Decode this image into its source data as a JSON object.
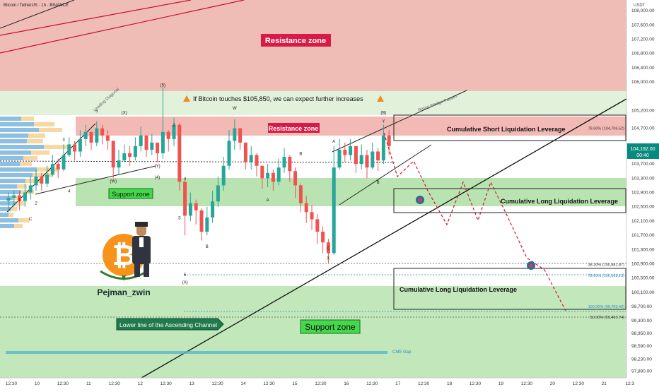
{
  "header": {
    "title": "Bitcoin / TetherUS · 1h · BINANCE",
    "currency": "USDT"
  },
  "price_tag": {
    "value": "104,192.00",
    "countdown": "00:40",
    "color": "#0a8a7e"
  },
  "zones": {
    "resistance_top": "Resistance zone",
    "resistance_mid": "Resistance zone",
    "support_mid": "Support zone",
    "support_bottom": "Support zone",
    "short_liq": "Cumulative Short Liquidation Leverage",
    "long_liq_1": "Cumulative Long Liquidation Leverage",
    "long_liq_2": "Cumulative Long Liquidation Leverage",
    "cme_gap": "CME Gap",
    "note": "If Bitcoin touches $105,850, we can expect further increases",
    "channel_label": "Lower line of the Ascending Channel",
    "wedge_label": "Rising Wedge Pattern",
    "diagonal_label": "Leading Diagonal",
    "author": "Pejman_zwin"
  },
  "fib_levels": [
    {
      "label": "78.60% (104,706.52)",
      "price": 104706.52,
      "color": "#333333"
    },
    {
      "label": "38.20% (100,881.87)",
      "price": 100881.87,
      "color": "#333333"
    },
    {
      "label": "78.60% (100,568.13)",
      "price": 100568.13,
      "color": "#2e8bc0"
    },
    {
      "label": "100.00% (99,703.42)",
      "price": 99703.42,
      "color": "#2e8bc0"
    },
    {
      "label": "50.00% (99,403.74)",
      "price": 99403.74,
      "color": "#333333"
    }
  ],
  "wave_labels": [
    {
      "t": "1",
      "i": 2,
      "p": 102650
    },
    {
      "t": "2",
      "i": 5,
      "p": 102560
    },
    {
      "t": "3",
      "i": 10,
      "p": 104350
    },
    {
      "t": "4",
      "i": 11,
      "p": 102900
    },
    {
      "t": "5",
      "i": 16,
      "p": 105150
    },
    {
      "t": "(W)",
      "i": 19,
      "p": 103180
    },
    {
      "t": "(X)",
      "i": 21,
      "p": 105100
    },
    {
      "t": "(Y)",
      "i": 27,
      "p": 103600
    },
    {
      "t": "(4)",
      "i": 27,
      "p": 103290
    },
    {
      "t": "(5)",
      "i": 28,
      "p": 105870
    },
    {
      "t": "2",
      "i": 30,
      "p": 104750
    },
    {
      "t": "4",
      "i": 32,
      "p": 103250
    },
    {
      "t": "3",
      "i": 31,
      "p": 102150
    },
    {
      "t": "B",
      "i": 36,
      "p": 101350
    },
    {
      "t": "5",
      "i": 32,
      "p": 100550
    },
    {
      "t": "(A)",
      "i": 32,
      "p": 100350
    },
    {
      "t": "W",
      "i": 41,
      "p": 105230
    },
    {
      "t": "A",
      "i": 47,
      "p": 102650
    },
    {
      "t": "B",
      "i": 53,
      "p": 103950
    },
    {
      "t": "C",
      "i": 58,
      "p": 101300
    },
    {
      "t": "X",
      "i": 58,
      "p": 101020
    },
    {
      "t": "A",
      "i": 59,
      "p": 104300
    },
    {
      "t": "B",
      "i": 67,
      "p": 103150
    },
    {
      "t": "Y",
      "i": 68,
      "p": 104860
    },
    {
      "t": "(B)",
      "i": 68,
      "p": 105100
    },
    {
      "t": "C",
      "i": 4,
      "p": 102120
    }
  ],
  "axis": {
    "price_ticks": [
      "108,000.00",
      "107,600.00",
      "107,200.00",
      "106,800.00",
      "106,400.00",
      "106,000.00",
      "105,200.00",
      "104,700.00",
      "103,700.00",
      "103,300.00",
      "102,900.00",
      "102,500.00",
      "102,100.00",
      "101,700.00",
      "101,300.00",
      "100,900.00",
      "100,500.00",
      "100,100.00",
      "99,700.00",
      "99,300.00",
      "98,950.00",
      "98,590.00",
      "98,230.00",
      "97,890.00"
    ],
    "time_ticks": [
      "12:30",
      "10",
      "12:30",
      "11",
      "12:30",
      "12",
      "12:30",
      "13",
      "12:30",
      "14",
      "12:30",
      "15",
      "12:30",
      "16",
      "12:30",
      "17",
      "12:30",
      "18",
      "12:30",
      "19",
      "12:30",
      "20",
      "12:30",
      "21",
      "12:3"
    ]
  },
  "colors": {
    "up": "#26a69a",
    "down": "#ef5350",
    "resistance": "#e89a92",
    "support": "#8fd48a",
    "label_red": "#d81b46",
    "label_green": "#43d94a"
  },
  "chart_data": {
    "type": "candlestick",
    "title": "Bitcoin / TetherUS · 1h · BINANCE",
    "ylabel": "USDT",
    "ylim": [
      97700,
      108300
    ],
    "series": [
      {
        "name": "BTCUSDT",
        "close": [
          102750,
          102820,
          102660,
          102900,
          103100,
          103350,
          103150,
          103400,
          103700,
          103550,
          103950,
          104250,
          104050,
          104400,
          104600,
          104300,
          104700,
          104500,
          104350,
          103600,
          103800,
          104000,
          103900,
          104200,
          104500,
          104100,
          104300,
          104000,
          104600,
          104400,
          104800,
          103200,
          102250,
          102600,
          102400,
          101800,
          102200,
          102650,
          103100,
          103650,
          104350,
          104700,
          104300,
          103750,
          103950,
          103650,
          103300,
          103450,
          103200,
          103600,
          103900,
          103500,
          103100,
          102600,
          102350,
          102150,
          101800,
          101500,
          101200,
          103600,
          104100,
          103950,
          104200,
          103700,
          103950,
          103600,
          104050,
          103800,
          104500,
          104200
        ],
        "high": [
          102900,
          102950,
          102950,
          103150,
          103350,
          103550,
          103450,
          103650,
          103950,
          103850,
          104250,
          104450,
          104350,
          104650,
          104800,
          104600,
          104900,
          104800,
          104650,
          103900,
          104100,
          104250,
          104200,
          104450,
          104750,
          104350,
          104550,
          104250,
          105850,
          104650,
          105000,
          104850,
          103250,
          102900,
          102700,
          102450,
          102500,
          102950,
          103350,
          103900,
          104650,
          104950,
          104700,
          104200,
          104200,
          104000,
          103650,
          103700,
          103550,
          103850,
          104150,
          103950,
          103600,
          103150,
          102800,
          102550,
          102300,
          101950,
          101600,
          104200,
          104400,
          104300,
          104400,
          104150,
          104250,
          104100,
          104300,
          104150,
          104800,
          104650
        ],
        "low": [
          102350,
          102500,
          102400,
          102500,
          102700,
          102950,
          102950,
          103050,
          103350,
          103300,
          103500,
          103900,
          103800,
          103900,
          104200,
          104100,
          104200,
          104250,
          104100,
          103300,
          103400,
          103750,
          103650,
          103800,
          104050,
          103900,
          103950,
          103750,
          103850,
          104050,
          104200,
          102950,
          101700,
          102100,
          102000,
          101550,
          101700,
          102050,
          102500,
          102950,
          103550,
          104100,
          104100,
          103550,
          103550,
          103350,
          103000,
          103050,
          102950,
          103100,
          103450,
          103200,
          102750,
          102350,
          102050,
          101850,
          101450,
          101200,
          100900,
          101150,
          103550,
          103750,
          103800,
          103450,
          103550,
          103300,
          103550,
          103500,
          103700,
          103950
        ]
      }
    ]
  }
}
